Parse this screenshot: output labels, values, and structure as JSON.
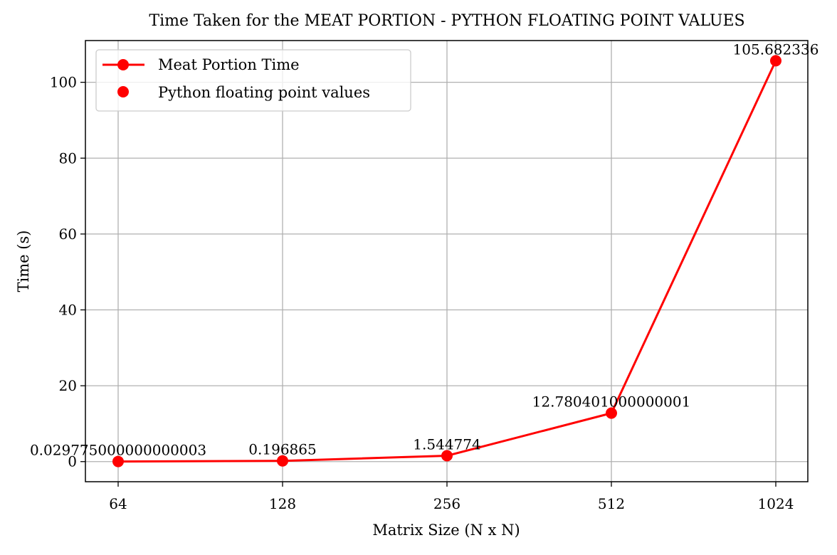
{
  "chart_data": {
    "type": "line",
    "title": "Time Taken for the MEAT PORTION - PYTHON FLOATING POINT VALUES",
    "xlabel": "Matrix Size (N x N)",
    "ylabel": "Time (s)",
    "categories": [
      "64",
      "128",
      "256",
      "512",
      "1024"
    ],
    "series": [
      {
        "name": "Meat Portion Time",
        "values": [
          0.029775000000000003,
          0.196865,
          1.544774,
          12.780401000000001,
          105.682336
        ],
        "data_labels": [
          "0.029775000000000003",
          "0.196865",
          "1.544774",
          "12.780401000000001",
          "105.682336"
        ],
        "color": "#ff0000",
        "marker": "circle"
      }
    ],
    "legend": {
      "position": "top-left",
      "entries": [
        {
          "label": "Meat Portion Time",
          "style": "line-marker",
          "color": "#ff0000"
        },
        {
          "label": "Python floating point values",
          "style": "marker",
          "color": "#ff0000"
        }
      ]
    },
    "ylim": [
      -5.3,
      111.0
    ],
    "yticks": [
      0,
      20,
      40,
      60,
      80,
      100
    ],
    "grid": true
  }
}
